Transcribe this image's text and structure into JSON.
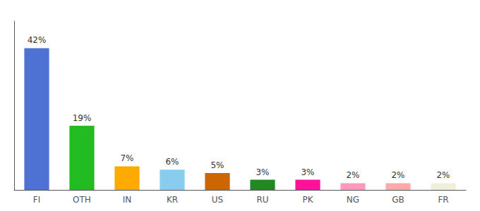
{
  "chart_data": {
    "type": "bar",
    "categories": [
      "FI",
      "OTH",
      "IN",
      "KR",
      "US",
      "RU",
      "PK",
      "NG",
      "GB",
      "FR"
    ],
    "values": [
      42,
      19,
      7,
      6,
      5,
      3,
      3,
      2,
      2,
      2
    ],
    "value_labels": [
      "42%",
      "19%",
      "7%",
      "6%",
      "5%",
      "3%",
      "3%",
      "2%",
      "2%",
      "2%"
    ],
    "colors": [
      "#4d72d4",
      "#22bb22",
      "#ffaa00",
      "#88ccee",
      "#cc6600",
      "#228822",
      "#ff1199",
      "#ff99bb",
      "#ffaaaa",
      "#f0eedc"
    ],
    "ylim": [
      0,
      50
    ],
    "grid": false,
    "data_labels": true,
    "tick_labels": "x"
  }
}
